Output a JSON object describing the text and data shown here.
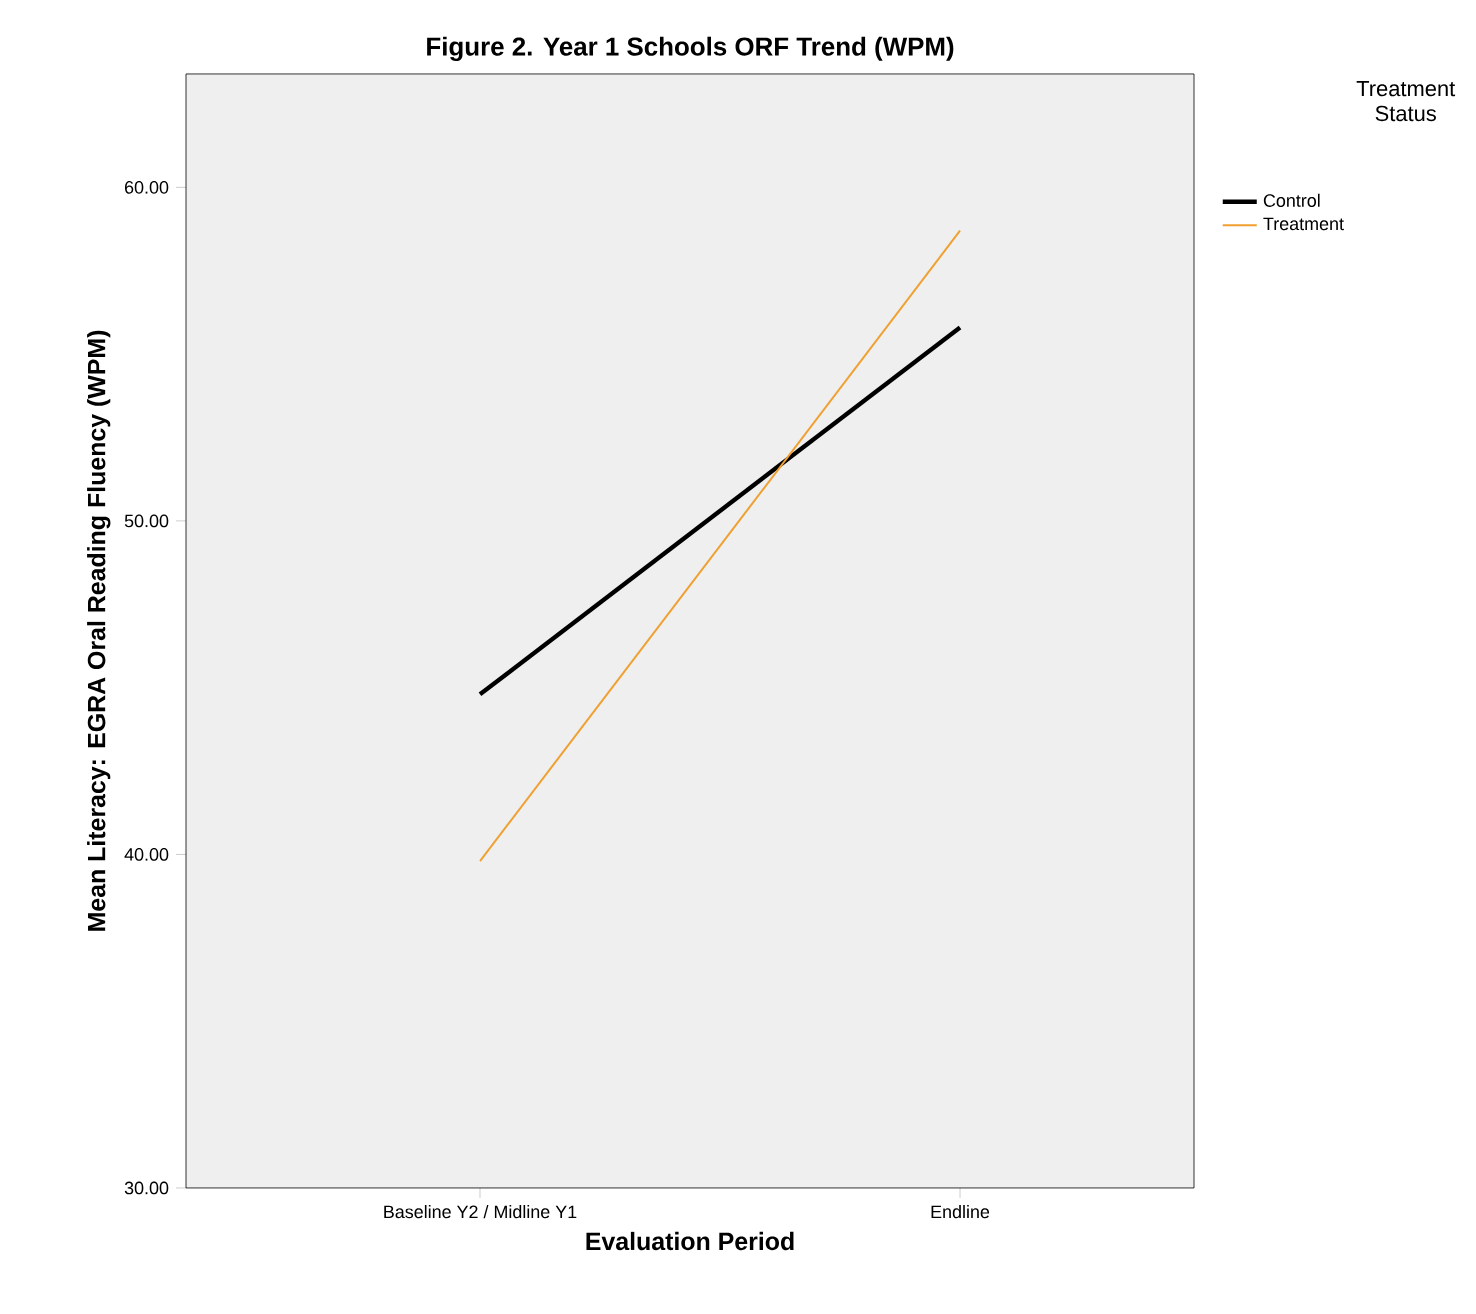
{
  "chart_data": {
    "type": "line",
    "title": "Figure 2. Year 1 Schools ORF Trend (WPM)",
    "xlabel": "Evaluation Period",
    "ylabel": "Mean Literacy: EGRA Oral Reading Fluency (WPM)",
    "legend_title": "Treatment Status",
    "categories": [
      "Baseline Y2 / Midline Y1",
      "Endline"
    ],
    "series": [
      {
        "name": "Control",
        "color": "#000000",
        "values": [
          44.8,
          55.8
        ]
      },
      {
        "name": "Treatment",
        "color": "#f0a030",
        "values": [
          39.8,
          58.7
        ]
      }
    ],
    "ylim": [
      30,
      63.4
    ],
    "yticks": [
      {
        "value": 30,
        "label": "30.00"
      },
      {
        "value": 40,
        "label": "40.00"
      },
      {
        "value": 50,
        "label": "50.00"
      },
      {
        "value": 60,
        "label": "60.00"
      }
    ],
    "grid": false,
    "legend": "right",
    "marker": "none",
    "line_style": "solid"
  }
}
